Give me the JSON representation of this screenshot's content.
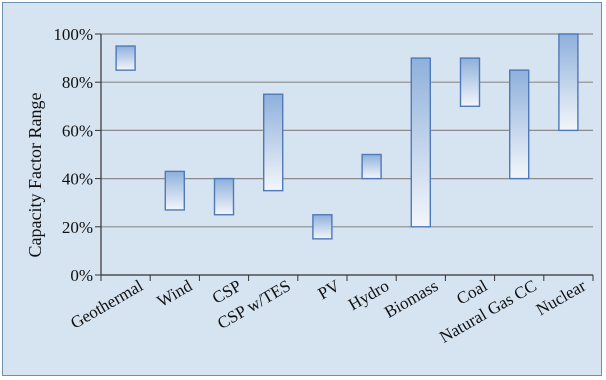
{
  "chart_data": {
    "type": "bar",
    "title": "",
    "xlabel": "",
    "ylabel": "Capacity Factor Range",
    "ylim": [
      0,
      100
    ],
    "y_tick_values": [
      0,
      20,
      40,
      60,
      80,
      100
    ],
    "y_tick_labels": [
      "0%",
      "20%",
      "40%",
      "60%",
      "80%",
      "100%"
    ],
    "grid": "horizontal",
    "categories": [
      "Geothermal",
      "Wind",
      "CSP",
      "CSP w/TES",
      "PV",
      "Hydro",
      "Biomass",
      "Coal",
      "Natural Gas CC",
      "Nuclear"
    ],
    "series": [
      {
        "low": [
          85,
          27,
          25,
          35,
          15,
          40,
          20,
          70,
          40,
          60
        ],
        "high": [
          95,
          43,
          40,
          75,
          25,
          50,
          90,
          90,
          85,
          100
        ]
      }
    ]
  },
  "colors": {
    "background": "#d6e3f0",
    "plot_area": "#d6e3f0",
    "bar_top": "#8eb0db",
    "bar_bottom": "#f3f6fb",
    "bar_border": "#4f79b8",
    "gridline": "#8c8c8c"
  }
}
